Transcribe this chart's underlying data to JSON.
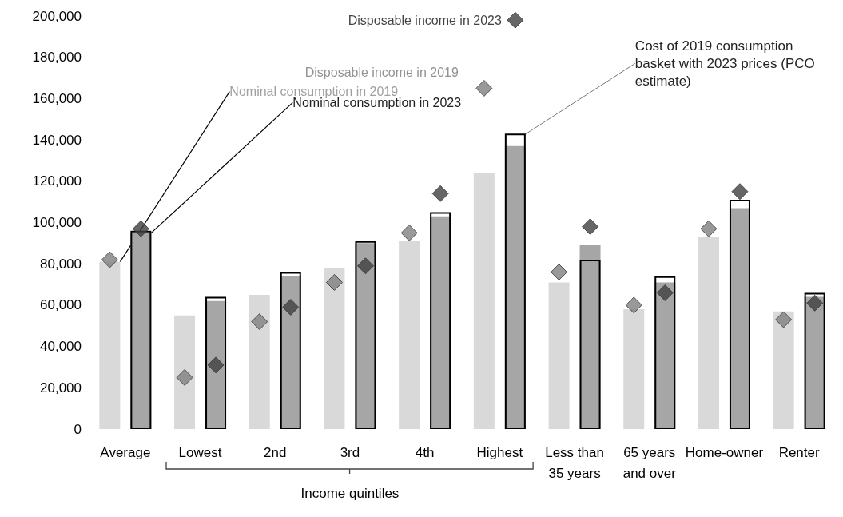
{
  "chart_data": {
    "type": "bar",
    "categories": [
      "Average",
      "Lowest",
      "2nd",
      "3rd",
      "4th",
      "Highest",
      "Less than 35 years",
      "65 years and over",
      "Home-owner",
      "Renter"
    ],
    "series": [
      {
        "name": "Nominal consumption in 2019",
        "color": "#d9d9d9",
        "values": [
          81000,
          55000,
          65000,
          78000,
          91000,
          124000,
          71000,
          58000,
          93000,
          57000
        ]
      },
      {
        "name": "Nominal consumption in 2023",
        "color": "#a6a6a6",
        "values": [
          95000,
          62000,
          74000,
          90000,
          103000,
          137000,
          89000,
          71000,
          107000,
          64000
        ]
      },
      {
        "name": "Cost of 2019 consumption basket with 2023 prices (PCO estimate)",
        "color": "#000000",
        "values": [
          96000,
          64000,
          76000,
          91000,
          105000,
          143000,
          82000,
          74000,
          111000,
          66000
        ]
      },
      {
        "name": "Disposable income in 2019",
        "type": "scatter",
        "color": "#808080",
        "values": [
          82000,
          25000,
          52000,
          71000,
          95000,
          165000,
          76000,
          60000,
          97000,
          53000
        ]
      },
      {
        "name": "Disposable income in 2023",
        "type": "scatter",
        "color": "#404040",
        "values": [
          97000,
          31000,
          59000,
          79000,
          114000,
          198000,
          98000,
          66000,
          115000,
          61000
        ]
      }
    ],
    "marker": "diamond",
    "ylim": [
      0,
      200000
    ],
    "yticks": [
      0,
      {
        "value": 20000,
        "label": "20,000"
      },
      {
        "value": 40000,
        "label": "40,000"
      },
      {
        "value": 60000,
        "label": "60,000"
      },
      {
        "value": 80000,
        "label": "80,000"
      },
      {
        "value": 100000,
        "label": "100,000"
      },
      {
        "value": 120000,
        "label": "120,000"
      },
      {
        "value": 140000,
        "label": "140,000"
      },
      {
        "value": 160000,
        "label": "160,000"
      },
      {
        "value": 180000,
        "label": "180,000"
      },
      {
        "value": 200000,
        "label": "200,000"
      }
    ],
    "annotations": [
      "Income quintiles"
    ]
  }
}
